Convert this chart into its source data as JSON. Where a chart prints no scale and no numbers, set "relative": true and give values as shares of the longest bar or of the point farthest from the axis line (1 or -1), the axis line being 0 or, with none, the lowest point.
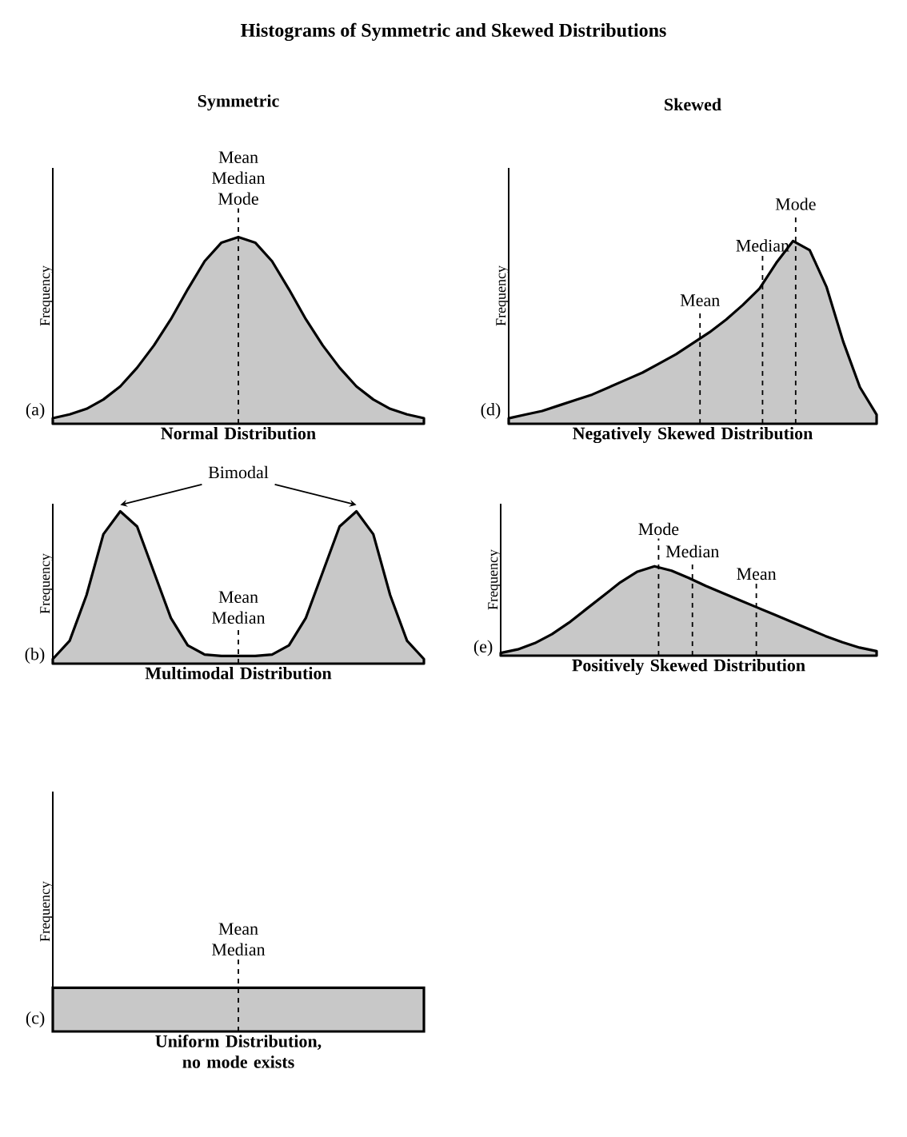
{
  "chart_data": [
    {
      "type": "area",
      "title": "Histograms of Symmetric and Skewed Distributions",
      "subtitle": "Symmetric",
      "xlabel": "Normal Distribution",
      "ylabel": "Frequency",
      "relative": true,
      "color": "#c8c8c8",
      "categories": [
        null,
        null,
        null,
        null,
        null,
        null,
        null,
        null,
        null,
        null,
        null,
        null,
        null,
        null,
        null,
        null,
        null,
        null,
        null,
        null,
        null,
        null,
        null
      ],
      "values": [
        0.03,
        0.05,
        0.08,
        0.13,
        0.2,
        0.3,
        0.42,
        0.56,
        0.72,
        0.87,
        0.97,
        1,
        0.97,
        0.87,
        0.72,
        0.56,
        0.42,
        0.3,
        0.2,
        0.13,
        0.08,
        0.05,
        0.03
      ],
      "annotations": [
        "(a)",
        "Mean",
        "Median",
        "Mode"
      ]
    },
    {
      "type": "area",
      "xlabel": "Multimodal Distribution",
      "ylabel": "Frequency",
      "relative": true,
      "color": "#c8c8c8",
      "categories": [
        null,
        null,
        null,
        null,
        null,
        null,
        null,
        null,
        null,
        null,
        null,
        null,
        null,
        null,
        null,
        null,
        null,
        null,
        null,
        null,
        null,
        null,
        null
      ],
      "values": [
        0.03,
        0.15,
        0.45,
        0.85,
        1,
        0.9,
        0.6,
        0.3,
        0.12,
        0.06,
        0.05,
        0.05,
        0.05,
        0.06,
        0.12,
        0.3,
        0.6,
        0.9,
        1,
        0.85,
        0.45,
        0.15,
        0.03
      ],
      "annotations": [
        "(b)",
        "Bimodal",
        "Mean",
        "Median"
      ]
    },
    {
      "type": "other",
      "xlabel": "Uniform Distribution, no mode exists",
      "ylabel": "Frequency",
      "color": "#c8c8c8",
      "annotations": [
        "(c)",
        "Mean",
        "Median"
      ]
    },
    {
      "type": "area",
      "subtitle": "Skewed",
      "xlabel": "Negatively Skewed Distribution",
      "ylabel": "Frequency",
      "relative": true,
      "color": "#c8c8c8",
      "categories": [
        null,
        null,
        null,
        null,
        null,
        null,
        null,
        null,
        null,
        null,
        null,
        null,
        null,
        null,
        null,
        null,
        null,
        null,
        null,
        null,
        null,
        null,
        null
      ],
      "values": [
        0.03,
        0.05,
        0.07,
        0.1,
        0.13,
        0.16,
        0.2,
        0.24,
        0.28,
        0.33,
        0.38,
        0.44,
        0.5,
        0.57,
        0.65,
        0.74,
        0.88,
        1,
        0.95,
        0.75,
        0.45,
        0.2,
        0.05
      ],
      "annotations": [
        "(d)",
        "Mean",
        "Median",
        "Mode"
      ]
    },
    {
      "type": "area",
      "xlabel": "Positively Skewed Distribution",
      "ylabel": "Frequency",
      "relative": true,
      "color": "#c8c8c8",
      "categories": [
        null,
        null,
        null,
        null,
        null,
        null,
        null,
        null,
        null,
        null,
        null,
        null,
        null,
        null,
        null,
        null,
        null,
        null,
        null,
        null,
        null,
        null,
        null
      ],
      "values": [
        0.03,
        0.07,
        0.14,
        0.24,
        0.37,
        0.52,
        0.67,
        0.82,
        0.94,
        1,
        0.95,
        0.87,
        0.78,
        0.7,
        0.62,
        0.54,
        0.46,
        0.38,
        0.3,
        0.22,
        0.15,
        0.09,
        0.05
      ],
      "annotations": [
        "(e)",
        "Mode",
        "Median",
        "Mean"
      ]
    }
  ]
}
